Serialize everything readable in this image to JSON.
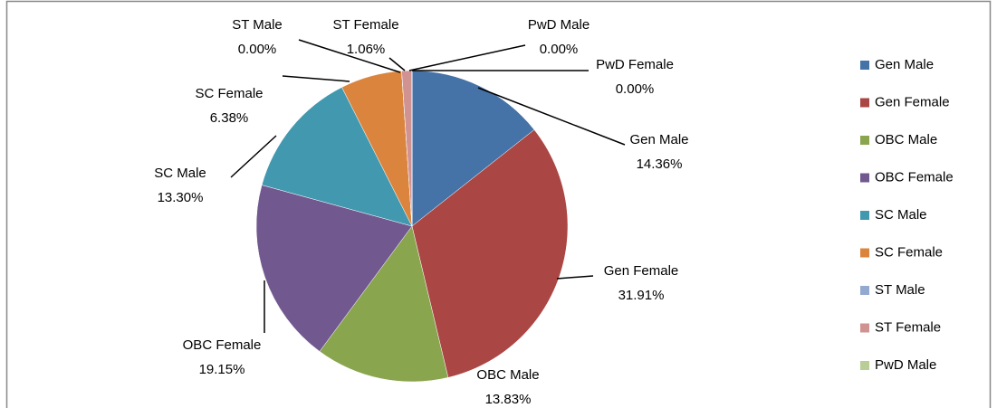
{
  "chart_data": {
    "type": "pie",
    "categories": [
      "Gen Male",
      "Gen Female",
      "OBC Male",
      "OBC Female",
      "SC Male",
      "SC Female",
      "ST Male",
      "ST Female",
      "PwD Male",
      "PwD Female"
    ],
    "values": [
      14.36,
      31.91,
      13.83,
      19.15,
      13.3,
      6.38,
      0.0,
      1.06,
      0.0,
      0.0
    ],
    "value_labels": [
      "14.36%",
      "31.91%",
      "13.83%",
      "19.15%",
      "13.30%",
      "6.38%",
      "0.00%",
      "1.06%",
      "0.00%",
      "0.00%"
    ],
    "colors": [
      "#4572a7",
      "#aa4643",
      "#89a54e",
      "#71588f",
      "#4198af",
      "#db843d",
      "#93a9cf",
      "#d19392",
      "#b9cd96",
      "#a99bbd"
    ],
    "legend": "right"
  }
}
